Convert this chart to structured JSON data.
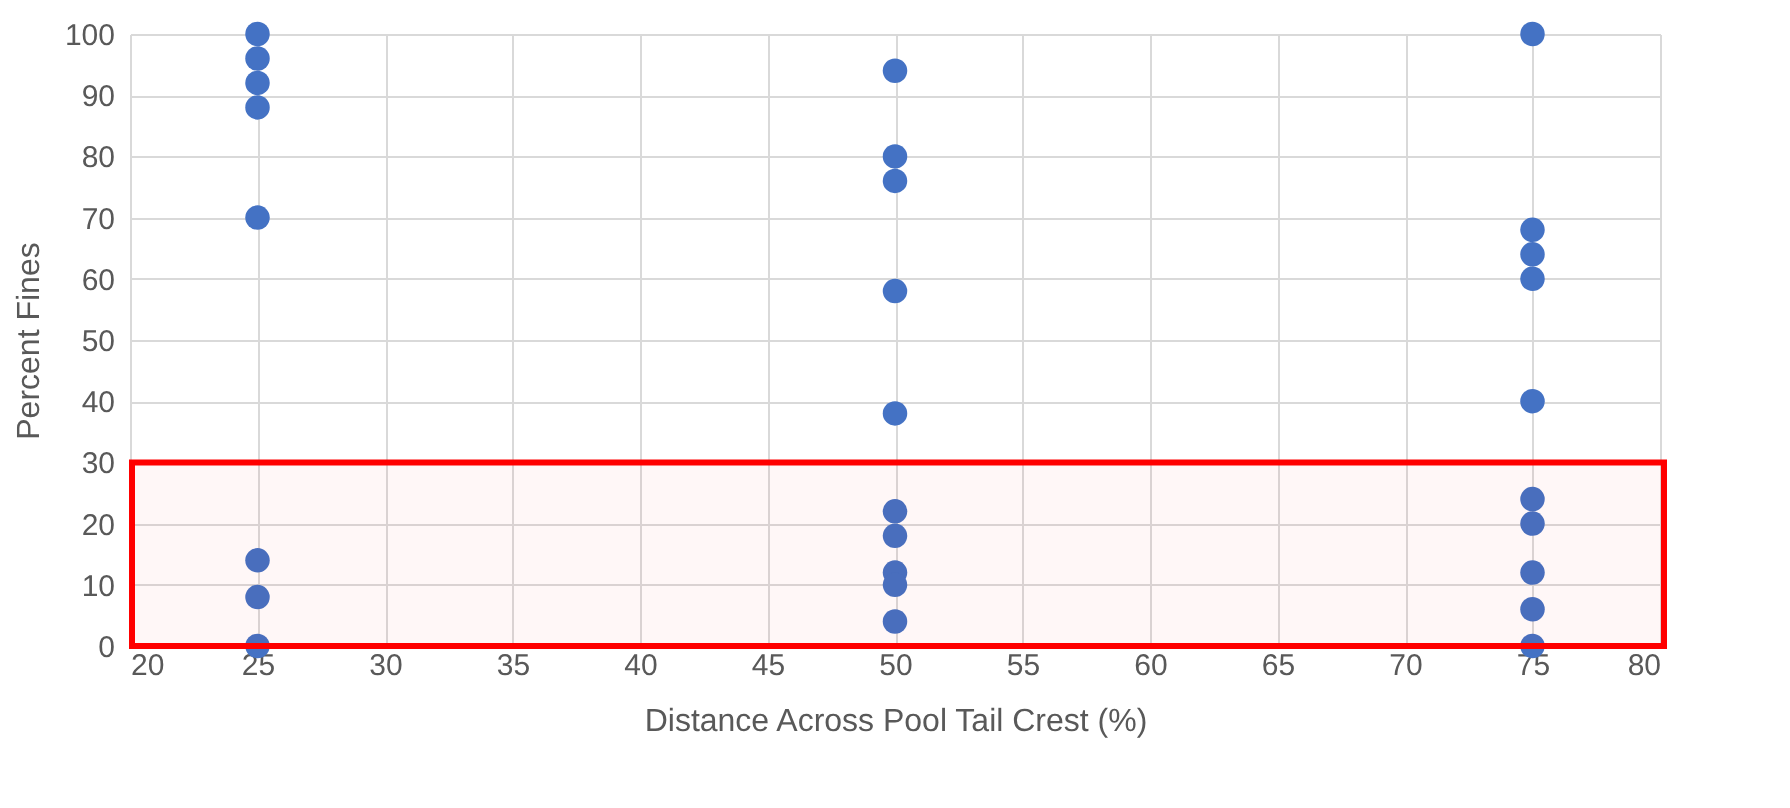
{
  "chart_data": {
    "type": "scatter",
    "xlabel": "Distance Across Pool Tail Crest (%)",
    "ylabel": "Percent Fines",
    "series": [
      {
        "color": "#4472c4",
        "x": [
          25,
          25,
          25,
          25,
          25,
          25,
          25,
          25,
          50,
          50,
          50,
          50,
          50,
          50,
          50,
          50,
          50,
          50,
          75,
          75,
          75,
          75,
          75,
          75,
          75,
          75,
          75,
          75
        ],
        "values": [
          100,
          96,
          92,
          88,
          70,
          14,
          8,
          0,
          94,
          80,
          76,
          58,
          38,
          22,
          18,
          12,
          10,
          4,
          100,
          68,
          64,
          60,
          40,
          24,
          20,
          12,
          6,
          0
        ]
      }
    ],
    "marker": "circle",
    "xlim": [
      20,
      80
    ],
    "xticks": [
      20,
      25,
      30,
      35,
      40,
      45,
      50,
      55,
      60,
      65,
      70,
      75,
      80
    ],
    "ylim": [
      0,
      100
    ],
    "yticks": [
      0,
      10,
      20,
      30,
      40,
      50,
      60,
      70,
      80,
      90,
      100
    ],
    "grid": true,
    "legend": false,
    "bands": [
      {
        "axis": "y",
        "from": 0,
        "to": 30,
        "color": "#ff0000"
      }
    ]
  }
}
